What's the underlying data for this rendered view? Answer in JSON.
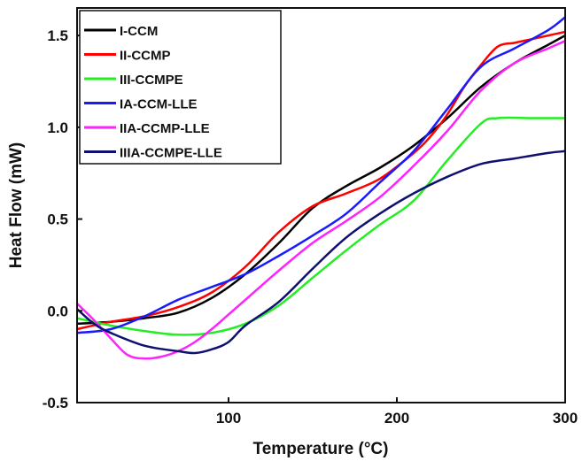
{
  "chart_data": {
    "type": "line",
    "title": "",
    "xlabel": "Temperature (°C)",
    "ylabel": "Heat Flow (mW)",
    "xlim": [
      10,
      300
    ],
    "ylim": [
      -0.5,
      1.65
    ],
    "xticks": [
      100,
      200,
      300
    ],
    "yticks": [
      -0.5,
      0.0,
      0.5,
      1.0,
      1.5
    ],
    "xtick_labels": [
      "100",
      "200",
      "300"
    ],
    "ytick_labels": [
      "-0.5",
      "0.0",
      "0.5",
      "1.0",
      "1.5"
    ],
    "grid": false,
    "legend_position": "top-left",
    "series": [
      {
        "name": "I-CCM",
        "color": "#000000",
        "x": [
          10,
          30,
          50,
          70,
          90,
          110,
          130,
          150,
          170,
          190,
          210,
          230,
          250,
          270,
          290,
          300
        ],
        "y": [
          -0.07,
          -0.06,
          -0.04,
          -0.01,
          0.07,
          0.2,
          0.37,
          0.56,
          0.68,
          0.78,
          0.9,
          1.05,
          1.22,
          1.35,
          1.45,
          1.5
        ]
      },
      {
        "name": "II-CCMP",
        "color": "#ff0000",
        "x": [
          10,
          30,
          50,
          70,
          90,
          110,
          130,
          150,
          170,
          190,
          210,
          220,
          230,
          240,
          250,
          260,
          270,
          280,
          290,
          300
        ],
        "y": [
          -0.1,
          -0.06,
          -0.03,
          0.02,
          0.1,
          0.24,
          0.43,
          0.57,
          0.64,
          0.72,
          0.86,
          0.95,
          1.07,
          1.22,
          1.34,
          1.44,
          1.46,
          1.48,
          1.5,
          1.52
        ]
      },
      {
        "name": "III-CCMPE",
        "color": "#22ee22",
        "x": [
          10,
          30,
          50,
          70,
          90,
          110,
          130,
          150,
          170,
          190,
          210,
          230,
          250,
          260,
          280,
          300
        ],
        "y": [
          -0.04,
          -0.08,
          -0.11,
          -0.13,
          -0.12,
          -0.07,
          0.03,
          0.18,
          0.33,
          0.47,
          0.6,
          0.82,
          1.02,
          1.05,
          1.05,
          1.05
        ]
      },
      {
        "name": "IA-CCM-LLE",
        "color": "#1a1aff",
        "x": [
          10,
          30,
          50,
          70,
          90,
          110,
          130,
          150,
          170,
          190,
          210,
          230,
          250,
          270,
          290,
          300
        ],
        "y": [
          -0.12,
          -0.1,
          -0.03,
          0.06,
          0.13,
          0.2,
          0.3,
          0.41,
          0.53,
          0.7,
          0.87,
          1.1,
          1.33,
          1.43,
          1.53,
          1.6
        ]
      },
      {
        "name": "IIA-CCMP-LLE",
        "color": "#ff22ff",
        "x": [
          10,
          20,
          30,
          40,
          50,
          60,
          70,
          80,
          90,
          100,
          110,
          130,
          150,
          170,
          190,
          210,
          230,
          250,
          270,
          290,
          300
        ],
        "y": [
          0.04,
          -0.05,
          -0.15,
          -0.24,
          -0.26,
          -0.25,
          -0.22,
          -0.17,
          -0.1,
          -0.02,
          0.06,
          0.22,
          0.37,
          0.49,
          0.62,
          0.79,
          0.98,
          1.2,
          1.35,
          1.43,
          1.47
        ]
      },
      {
        "name": "IIIA-CCMPE-LLE",
        "color": "#101070",
        "x": [
          10,
          20,
          30,
          50,
          70,
          80,
          90,
          100,
          110,
          130,
          150,
          170,
          190,
          210,
          230,
          250,
          270,
          290,
          300
        ],
        "y": [
          0.01,
          -0.07,
          -0.12,
          -0.19,
          -0.22,
          -0.23,
          -0.21,
          -0.17,
          -0.08,
          0.05,
          0.23,
          0.4,
          0.53,
          0.64,
          0.73,
          0.8,
          0.83,
          0.86,
          0.87
        ]
      }
    ]
  }
}
